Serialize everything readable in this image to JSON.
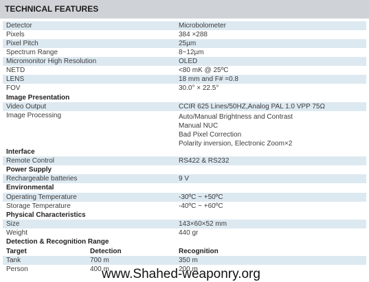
{
  "title": "TECHNICAL FEATURES",
  "rows": [
    {
      "label": "Detector",
      "value": "Microbolometer"
    },
    {
      "label": "Pixels",
      "value": "384 ×288"
    },
    {
      "label": "Pixel Pitch",
      "value": "25µm"
    },
    {
      "label": "Spectrum Range",
      "value": "8~12µm"
    },
    {
      "label": "Micromonitor High Resolution",
      "value": "OLED"
    },
    {
      "label": "NETD",
      "value": "<80 mK @ 25ºC"
    },
    {
      "label": "LENS",
      "value": "18 mm and F# =0.8"
    },
    {
      "label": "FOV",
      "value": "30.0° × 22.5°"
    },
    {
      "label": "Image Presentation",
      "value": ""
    },
    {
      "label": "Video Output",
      "value": "CCIR 625 Lines/50HZ,Analog PAL 1.0 VPP 75Ω"
    },
    {
      "label": "Image Processing",
      "value": ""
    },
    {
      "label": "Interface",
      "value": ""
    },
    {
      "label": "Remote Control",
      "value": "RS422 & RS232"
    },
    {
      "label": "Power Supply",
      "value": ""
    },
    {
      "label": "Rechargeable batteries",
      "value": "9 V"
    },
    {
      "label": "Environmental",
      "value": ""
    },
    {
      "label": "Operating Temperature",
      "value": "-30ºC ~ +50ºC"
    },
    {
      "label": "Storage Temperature",
      "value": "-40ºC ~ +60ºC"
    },
    {
      "label": "Physical Characteristics",
      "value": ""
    },
    {
      "label": "Size",
      "value": "143×60×52 mm"
    },
    {
      "label": "Weight",
      "value": "440 gr"
    },
    {
      "label": "Detection & Recognition Range",
      "value": ""
    }
  ],
  "image_processing_values": [
    "Auto/Manual Brightness and Contrast",
    "Manual NUC",
    "Bad Pixel Correction",
    "Polarity inversion, Electronic Zoom×2"
  ],
  "range_table": {
    "headers": [
      "Target",
      "Detection",
      "Recognition"
    ],
    "rows": [
      [
        "Tank",
        "700 m",
        "350 m"
      ],
      [
        "Person",
        "400 m",
        "200 m"
      ]
    ]
  },
  "watermark": "www.Shahed-weaponry.org",
  "colors": {
    "header_bg": "#cfd2d6",
    "row_shade": "#dde9f1"
  }
}
